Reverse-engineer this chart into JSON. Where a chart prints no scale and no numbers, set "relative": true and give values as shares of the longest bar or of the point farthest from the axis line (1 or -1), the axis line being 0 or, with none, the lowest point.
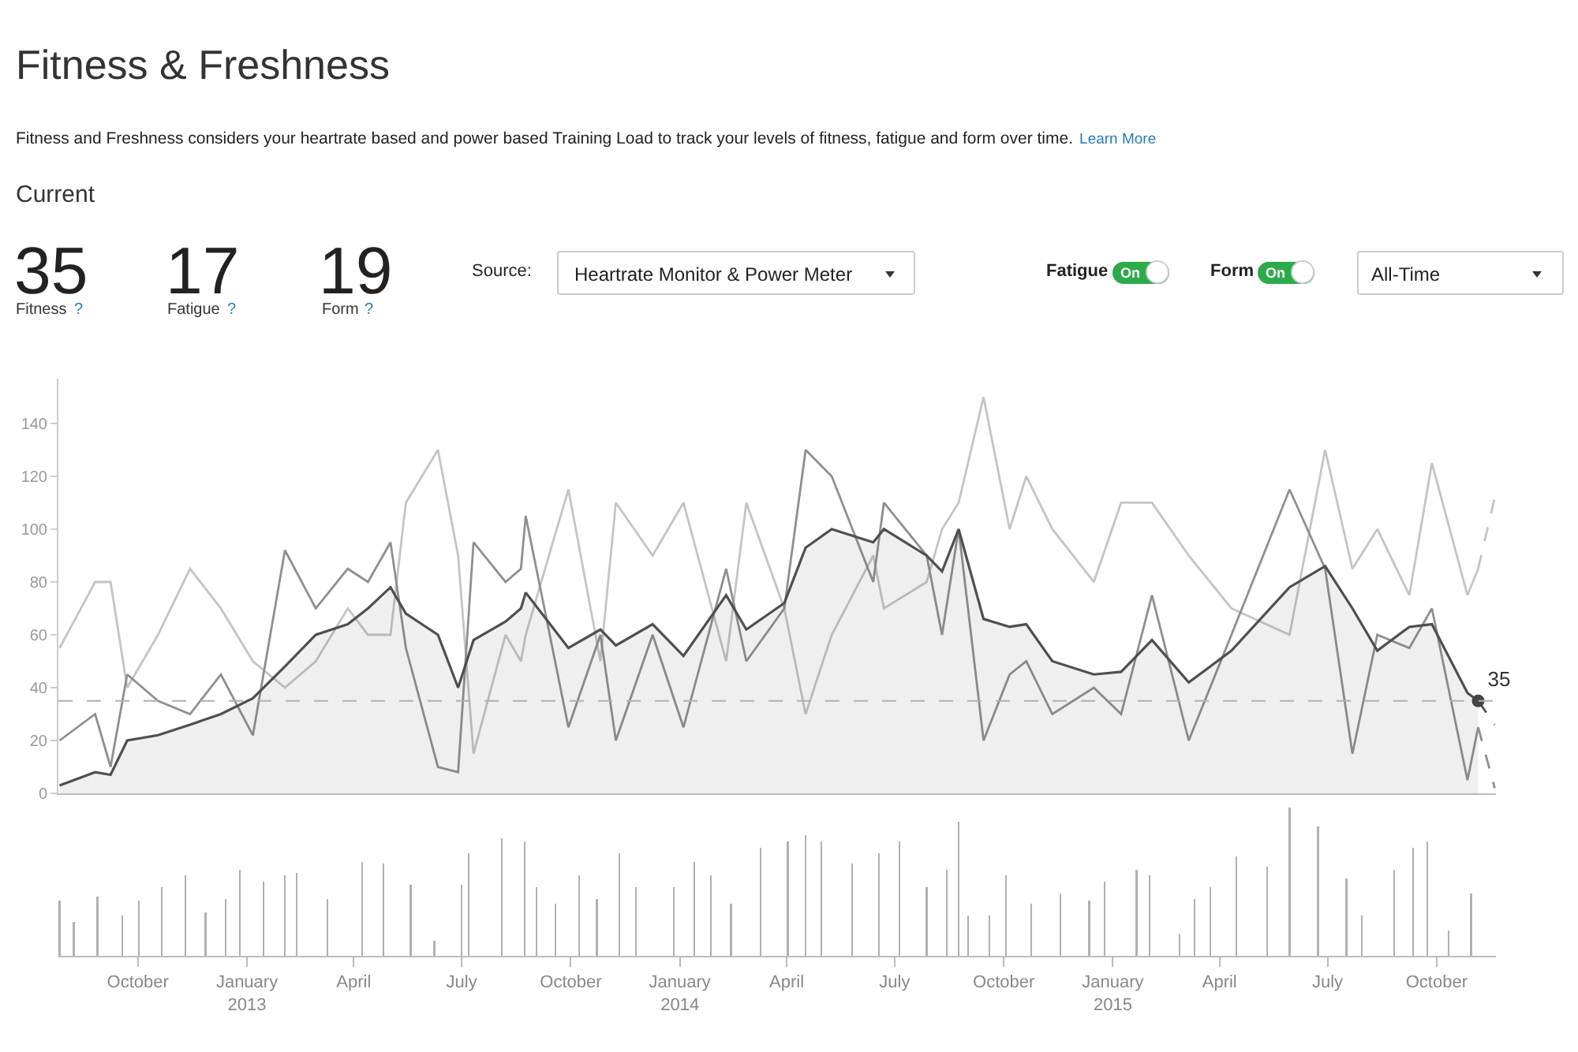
{
  "chart_data": [
    {
      "type": "other",
      "title": "Fitness & Freshness",
      "subtitle": "Fitness and Freshness considers your heartrate based and power based Training Load to track your levels of fitness, fatigue and form over time.",
      "annotations": [
        "Learn More",
        "Current",
        "35",
        "Fitness",
        "?",
        "17",
        "Fatigue",
        "?",
        "19",
        "Form",
        "?",
        "Source:",
        "Heartrate Monitor & Power Meter",
        "Fatigue",
        "On",
        "Form",
        "On",
        "All-Time"
      ]
    },
    {
      "type": "line",
      "xlim": [
        "2012-07-26",
        "2015-11-20"
      ],
      "ylim": [
        0,
        157
      ],
      "yticks": [
        0,
        20,
        40,
        60,
        80,
        100,
        120,
        140
      ],
      "tick_labels": "y",
      "grid": false,
      "x": [
        "2012-07-27",
        "2012-08-26",
        "2012-09-08",
        "2012-09-22",
        "2012-10-18",
        "2012-11-14",
        "2012-12-10",
        "2013-01-06",
        "2013-02-02",
        "2013-02-28",
        "2013-03-27",
        "2013-04-13",
        "2013-05-02",
        "2013-05-15",
        "2013-06-11",
        "2013-06-28",
        "2013-07-11",
        "2013-08-07",
        "2013-08-20",
        "2013-08-24",
        "2013-09-29",
        "2013-10-26",
        "2013-11-08",
        "2013-12-09",
        "2014-01-04",
        "2014-02-09",
        "2014-02-26",
        "2014-03-30",
        "2014-04-17",
        "2014-05-09",
        "2014-06-13",
        "2014-06-22",
        "2014-07-28",
        "2014-08-10",
        "2014-08-24",
        "2014-09-14",
        "2014-10-06",
        "2014-10-20",
        "2014-11-11",
        "2014-12-16",
        "2015-01-08",
        "2015-02-03",
        "2015-03-06",
        "2015-04-11",
        "2015-05-30",
        "2015-06-29",
        "2015-07-22",
        "2015-08-12",
        "2015-09-08",
        "2015-09-27",
        "2015-10-27",
        "2015-11-05"
      ],
      "series": [
        {
          "type": "line",
          "color": "#c4c4c4",
          "values": [
            55,
            80,
            80,
            40,
            60,
            85,
            70,
            50,
            40,
            50,
            70,
            60,
            60,
            110,
            130,
            90,
            15,
            60,
            50,
            60,
            115,
            50,
            110,
            90,
            110,
            50,
            110,
            70,
            30,
            60,
            90,
            70,
            80,
            100,
            110,
            150,
            100,
            120,
            100,
            80,
            110,
            110,
            90,
            70,
            60,
            130,
            85,
            100,
            75,
            125,
            75,
            85
          ]
        },
        {
          "type": "line",
          "color": "#8f8f8f",
          "values": [
            20,
            30,
            10,
            45,
            35,
            30,
            45,
            22,
            92,
            70,
            85,
            80,
            95,
            55,
            10,
            8,
            95,
            80,
            85,
            105,
            25,
            60,
            20,
            60,
            25,
            85,
            50,
            70,
            130,
            120,
            80,
            110,
            90,
            60,
            100,
            20,
            45,
            50,
            30,
            40,
            30,
            75,
            20,
            60,
            115,
            85,
            15,
            60,
            55,
            70,
            5,
            25
          ]
        },
        {
          "type": "area",
          "color": "#4f4f4f",
          "values": [
            3,
            8,
            7,
            20,
            22,
            26,
            30,
            36,
            48,
            60,
            64,
            70,
            78,
            68,
            60,
            40,
            58,
            65,
            70,
            76,
            55,
            62,
            56,
            64,
            52,
            75,
            62,
            72,
            93,
            100,
            95,
            100,
            90,
            84,
            100,
            66,
            63,
            64,
            50,
            45,
            46,
            58,
            42,
            54,
            78,
            86,
            70,
            54,
            63,
            64,
            38,
            35
          ]
        },
        {
          "type": "line",
          "line_style": "dashed",
          "color": "#c4c4c4",
          "x": [
            "2015-11-05",
            "2015-11-19"
          ],
          "values": [
            85,
            112
          ]
        },
        {
          "type": "line",
          "line_style": "dashed",
          "color": "#8f8f8f",
          "x": [
            "2015-11-05",
            "2015-11-19"
          ],
          "values": [
            25,
            2
          ]
        },
        {
          "type": "line",
          "line_style": "dashed",
          "color": "#4f4f4f",
          "x": [
            "2015-11-05",
            "2015-11-19"
          ],
          "values": [
            35,
            26
          ]
        },
        {
          "type": "scatter",
          "marker": "circle",
          "color": "#444444",
          "x": [
            "2015-11-05"
          ],
          "values": [
            35
          ],
          "value_labels": [
            "35"
          ]
        }
      ],
      "ref_lines": [
        {
          "axis": "y",
          "value": 35,
          "line_style": "dashed",
          "color": "#b0b0b0"
        }
      ]
    },
    {
      "type": "bar",
      "relative": true,
      "color": "#b0b0b0",
      "xlim": [
        "2012-07-26",
        "2015-11-20"
      ],
      "tick_labels": "x",
      "xticks": [
        {
          "value": "2012-10-01",
          "label": "October"
        },
        {
          "value": "2013-01-01",
          "label": "January\n2013"
        },
        {
          "value": "2013-04-01",
          "label": "April"
        },
        {
          "value": "2013-07-01",
          "label": "July"
        },
        {
          "value": "2013-10-01",
          "label": "October"
        },
        {
          "value": "2014-01-01",
          "label": "January\n2014"
        },
        {
          "value": "2014-04-01",
          "label": "April"
        },
        {
          "value": "2014-07-01",
          "label": "July"
        },
        {
          "value": "2014-10-01",
          "label": "October"
        },
        {
          "value": "2015-01-01",
          "label": "January\n2015"
        },
        {
          "value": "2015-04-01",
          "label": "April"
        },
        {
          "value": "2015-07-01",
          "label": "July"
        },
        {
          "value": "2015-10-01",
          "label": "October"
        }
      ],
      "x": [
        "2012-07-27",
        "2012-08-08",
        "2012-08-28",
        "2012-09-18",
        "2012-10-02",
        "2012-10-21",
        "2012-11-10",
        "2012-11-27",
        "2012-12-14",
        "2012-12-26",
        "2013-01-15",
        "2013-02-02",
        "2013-02-12",
        "2013-03-10",
        "2013-04-08",
        "2013-04-26",
        "2013-05-19",
        "2013-06-08",
        "2013-07-01",
        "2013-07-07",
        "2013-08-04",
        "2013-08-23",
        "2013-09-02",
        "2013-09-18",
        "2013-10-08",
        "2013-10-23",
        "2013-11-11",
        "2013-11-25",
        "2013-12-27",
        "2014-01-13",
        "2014-01-27",
        "2014-02-13",
        "2014-03-10",
        "2014-04-02",
        "2014-04-17",
        "2014-04-30",
        "2014-05-26",
        "2014-06-18",
        "2014-07-05",
        "2014-07-28",
        "2014-08-14",
        "2014-08-24",
        "2014-09-01",
        "2014-09-19",
        "2014-10-03",
        "2014-10-24",
        "2014-11-18",
        "2014-12-12",
        "2014-12-25",
        "2015-01-21",
        "2015-02-01",
        "2015-02-26",
        "2015-03-11",
        "2015-03-24",
        "2015-04-15",
        "2015-05-11",
        "2015-05-30",
        "2015-06-23",
        "2015-07-17",
        "2015-07-30",
        "2015-08-26",
        "2015-09-11",
        "2015-09-23",
        "2015-10-11",
        "2015-10-30"
      ],
      "values": [
        0.37,
        0.23,
        0.4,
        0.27,
        0.37,
        0.46,
        0.54,
        0.29,
        0.38,
        0.58,
        0.5,
        0.54,
        0.56,
        0.38,
        0.63,
        0.62,
        0.48,
        0.1,
        0.48,
        0.69,
        0.79,
        0.77,
        0.46,
        0.35,
        0.54,
        0.38,
        0.69,
        0.46,
        0.46,
        0.63,
        0.54,
        0.35,
        0.73,
        0.77,
        0.81,
        0.77,
        0.62,
        0.69,
        0.77,
        0.46,
        0.58,
        0.9,
        0.27,
        0.27,
        0.54,
        0.35,
        0.42,
        0.37,
        0.5,
        0.58,
        0.54,
        0.15,
        0.38,
        0.46,
        0.67,
        0.6,
        1,
        0.87,
        0.52,
        0.27,
        0.58,
        0.73,
        0.77,
        0.17,
        0.42
      ]
    }
  ]
}
